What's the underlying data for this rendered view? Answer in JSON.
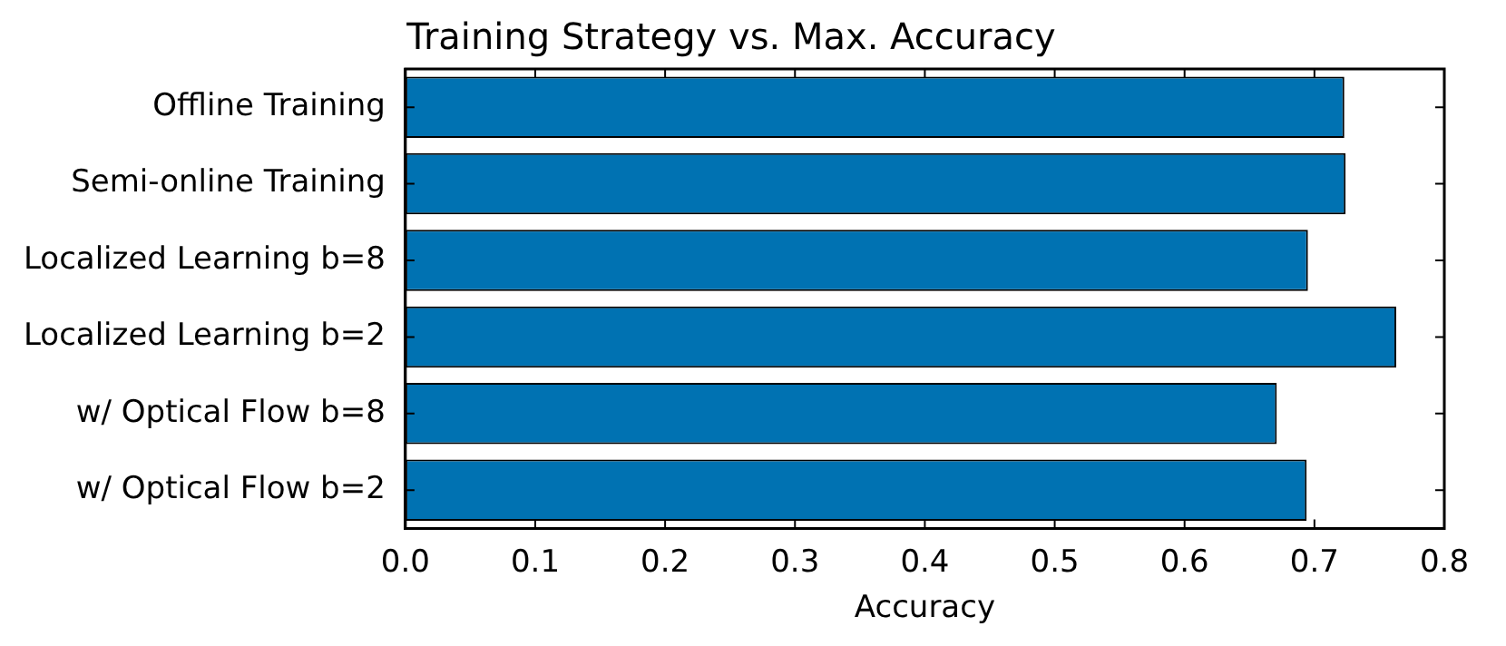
{
  "chart_data": {
    "type": "bar",
    "orientation": "horizontal",
    "title": "Training Strategy vs. Max. Accuracy",
    "xlabel": "Accuracy",
    "categories": [
      "Offline Training",
      "Semi-online Training",
      "Localized Learning b=8",
      "Localized Learning b=2",
      "w/ Optical Flow b=8",
      "w/ Optical Flow b=2"
    ],
    "values": [
      0.723,
      0.724,
      0.695,
      0.763,
      0.671,
      0.694
    ],
    "color": "#0072b2",
    "xlim": [
      0,
      0.8
    ],
    "xticks": [
      {
        "value": 0,
        "label": "0.0"
      },
      0.1,
      0.2,
      0.3,
      0.4,
      0.5,
      0.6,
      0.7,
      0.8
    ],
    "grid": false,
    "legend": false
  }
}
